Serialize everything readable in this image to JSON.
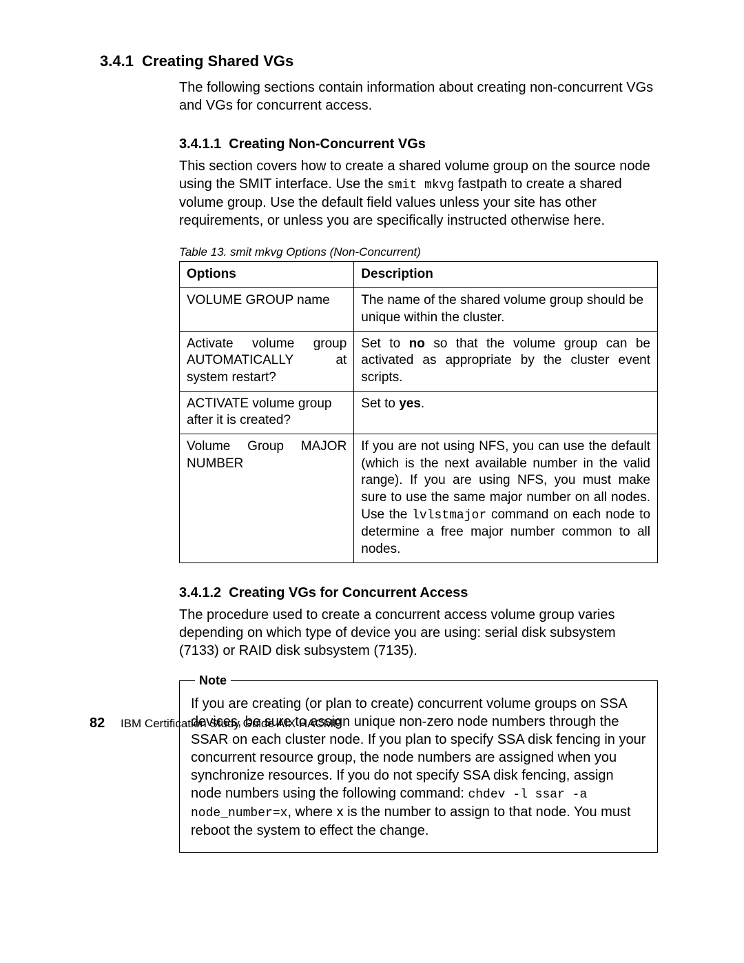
{
  "section": {
    "number": "3.4.1",
    "title": "Creating Shared VGs",
    "intro": "The following sections contain information about creating non-concurrent VGs and VGs for concurrent access."
  },
  "sub1": {
    "number": "3.4.1.1",
    "title": "Creating Non-Concurrent VGs",
    "para_pre": "This section covers how to create a shared volume group on the source node using the SMIT interface. Use the ",
    "code": "smit mkvg",
    "para_post": " fastpath to create a shared volume group. Use the default field values unless your site has other requirements, or unless you are specifically instructed otherwise here."
  },
  "table": {
    "caption": "Table 13.  smit mkvg Options (Non-Concurrent)",
    "head_options": "Options",
    "head_description": "Description",
    "rows": {
      "r0": {
        "opt": "VOLUME GROUP name",
        "desc": "The name of the shared volume group should be unique within the cluster."
      },
      "r1": {
        "opt": "Activate volume group AUTOMATICALLY at system restart?",
        "desc_pre": "Set to ",
        "desc_bold": "no",
        "desc_post": " so that the volume group can be activated as appropriate by the cluster event scripts."
      },
      "r2": {
        "opt": "ACTIVATE volume group after it is created?",
        "desc_pre": "Set to ",
        "desc_bold": "yes",
        "desc_post": "."
      },
      "r3": {
        "opt": "Volume Group MAJOR NUMBER",
        "desc_pre": "If you are not using NFS, you can use the default (which is the next available number in the valid range). If you are using NFS, you must make sure to use the same major number on all nodes. Use the ",
        "desc_code": "lvlstmajor",
        "desc_post": " command on each node to determine a free major number common to all nodes."
      }
    }
  },
  "sub2": {
    "number": "3.4.1.2",
    "title": "Creating VGs for Concurrent Access",
    "para": "The procedure used to create a concurrent access volume group varies depending on which type of device you are using: serial disk subsystem (7133) or RAID disk subsystem (7135)."
  },
  "note": {
    "label": "Note",
    "pre": "If you are creating (or plan to create) concurrent volume groups on SSA devices, be sure to assign unique non-zero node numbers through the SSAR on each cluster node. If you plan to specify SSA disk fencing in your concurrent resource group, the node numbers are assigned when you synchronize resources. If you do not specify SSA disk fencing, assign node numbers using the following command: ",
    "code": "chdev -l ssar -a node_number=x",
    "post": ", where x is the number to assign to that node. You must reboot the system to effect the change."
  },
  "footer": {
    "page": "82",
    "book": "IBM Certification Study Guide  AIX HACMP"
  }
}
